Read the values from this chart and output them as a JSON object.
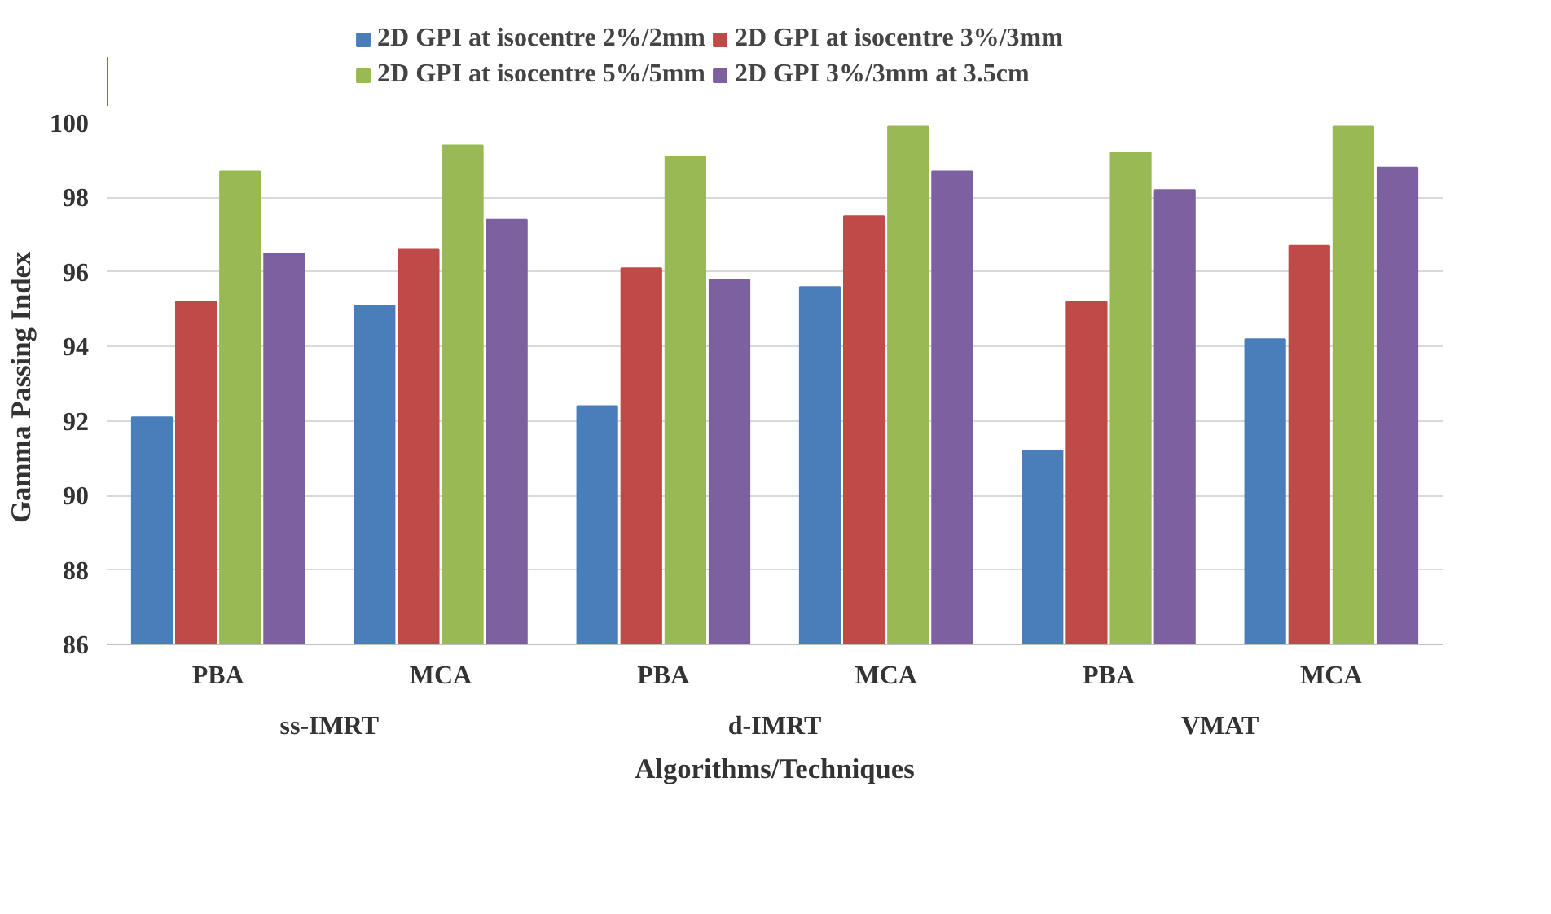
{
  "chart_data": {
    "type": "bar",
    "xlabel": "Algorithms/Techniques",
    "ylabel": "Gamma  Passing Index",
    "categories": [
      "PBA",
      "MCA",
      "PBA",
      "MCA",
      "PBA",
      "MCA"
    ],
    "annotations": [
      "ss-IMRT",
      "d-IMRT",
      "VMAT"
    ],
    "series": [
      {
        "name": "2D GPI at isocentre 2%/2mm",
        "color": "#4a7ebb",
        "values": [
          92.1,
          95.1,
          92.4,
          95.6,
          91.2,
          94.2
        ]
      },
      {
        "name": "2D GPI at isocentre 3%/3mm",
        "color": "#be4b48",
        "values": [
          95.2,
          96.6,
          96.1,
          97.5,
          95.2,
          96.7
        ]
      },
      {
        "name": "2D GPI at isocentre 5%/5mm",
        "color": "#98b954",
        "values": [
          98.7,
          99.4,
          99.1,
          99.9,
          99.2,
          99.9
        ]
      },
      {
        "name": "2D GPI 3%/3mm at 3.5cm",
        "color": "#7d60a0",
        "values": [
          96.5,
          97.4,
          95.8,
          98.7,
          98.2,
          98.8
        ]
      }
    ],
    "ylim": [
      86,
      100
    ],
    "yticks": [
      86,
      88,
      90,
      92,
      94,
      96,
      98,
      100
    ],
    "grid": "y",
    "legend": "top"
  }
}
